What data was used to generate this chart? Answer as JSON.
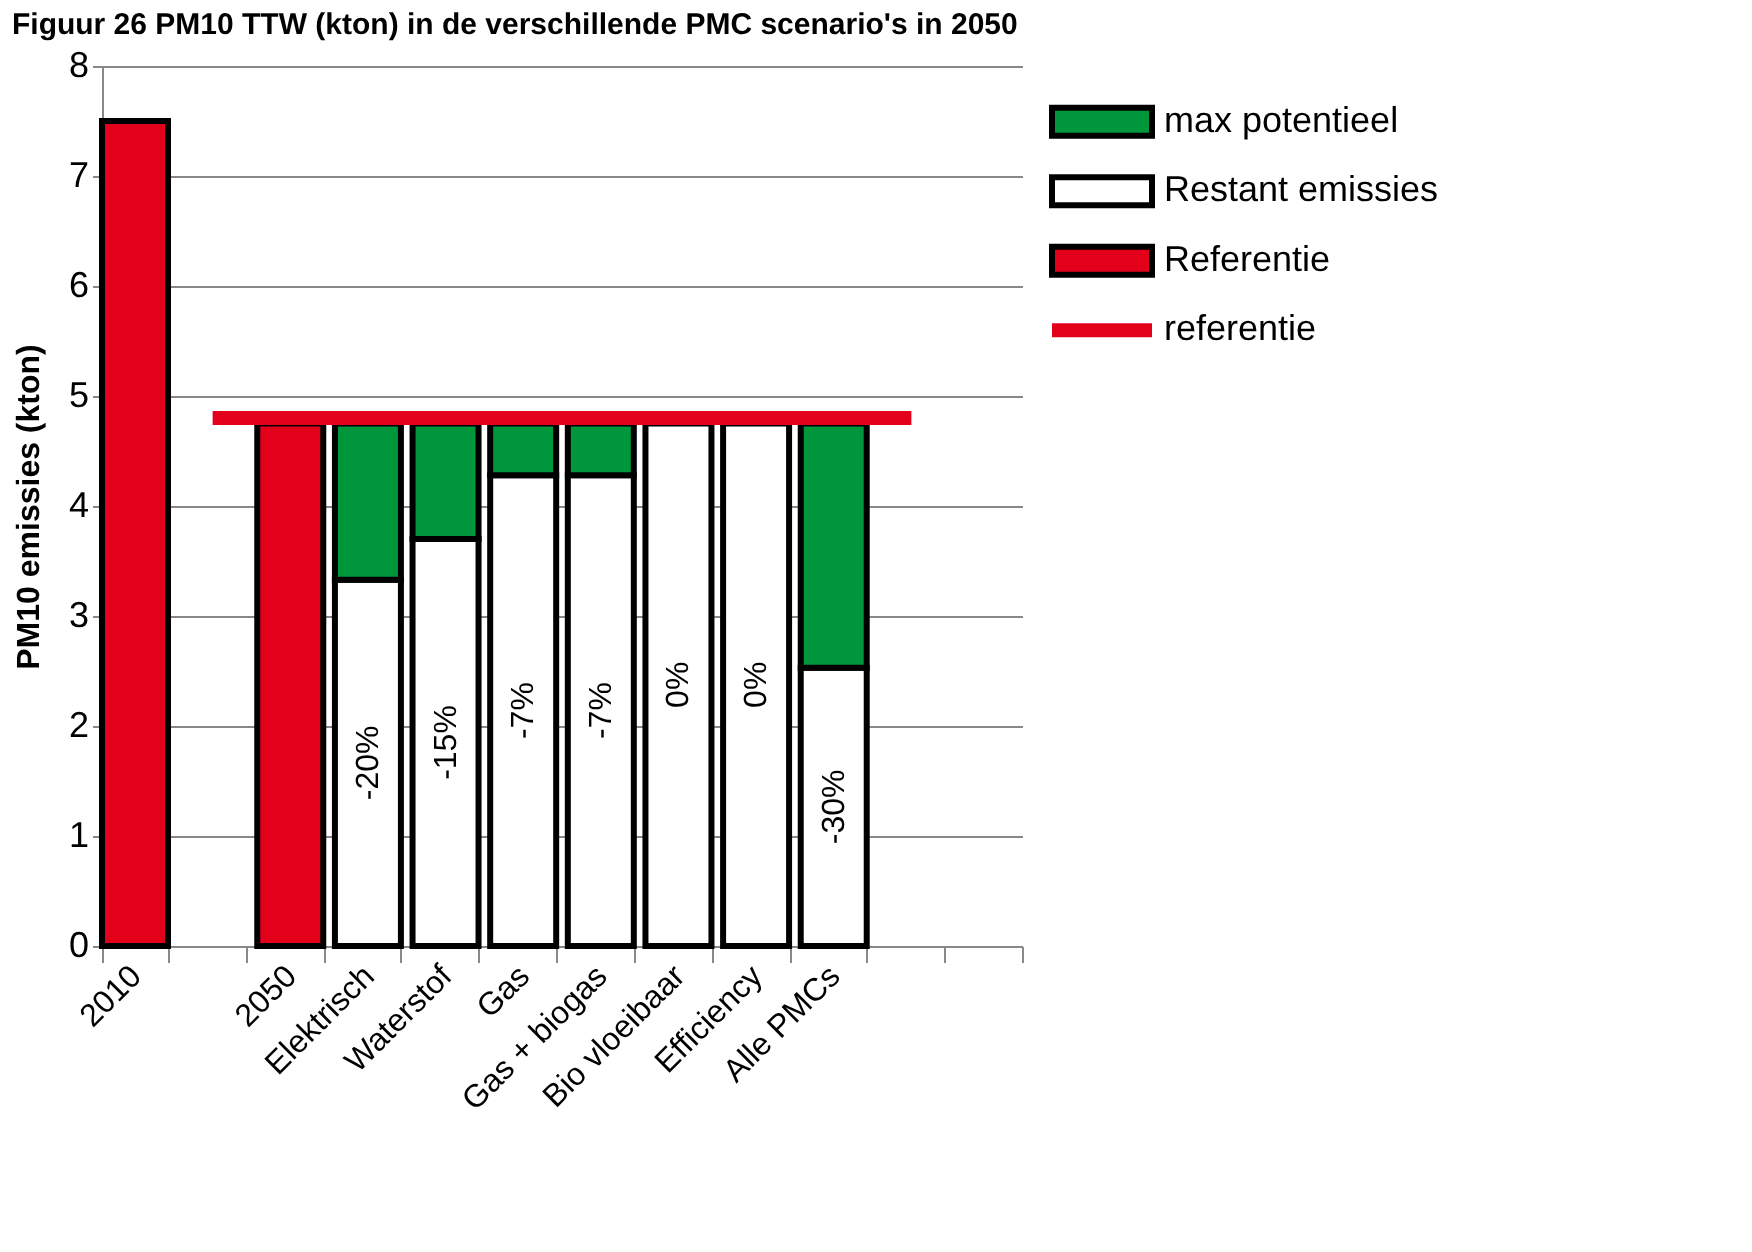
{
  "chart_data": {
    "type": "bar",
    "title": "Figuur 26     PM10 TTW (kton) in de verschillende PMC scenario's in 2050",
    "ylabel": "PM10 emissies (kton)",
    "categories": [
      "2010",
      null,
      "2050",
      "Elektrisch",
      "Waterstof",
      "Gas",
      "Gas + biogas",
      "Bio vloeibaar",
      "Efficiency",
      "Alle PMCs",
      null,
      null
    ],
    "stacked": true,
    "ylim": [
      0,
      8
    ],
    "yticks": [
      0,
      1,
      2,
      3,
      4,
      5,
      6,
      7,
      8
    ],
    "grid": "y",
    "legend": "right",
    "series": [
      {
        "name": "Referentie",
        "color": "#e2001a",
        "values": [
          7.5,
          null,
          4.75,
          null,
          null,
          null,
          null,
          null,
          null,
          null,
          null,
          null
        ]
      },
      {
        "name": "Restant emissies",
        "color": "#ffffff",
        "values": [
          null,
          null,
          null,
          3.33,
          3.7,
          4.28,
          4.28,
          4.75,
          4.75,
          2.53,
          null,
          null
        ]
      },
      {
        "name": "max potentieel",
        "color": "#00963c",
        "values": [
          null,
          null,
          null,
          1.42,
          1.05,
          0.47,
          0.47,
          null,
          null,
          2.22,
          null,
          null
        ]
      },
      {
        "name": "referentie",
        "type": "line",
        "color": "#e2001a",
        "values": [
          null,
          4.8,
          4.8,
          4.8,
          4.8,
          4.8,
          4.8,
          4.8,
          4.8,
          4.8,
          4.8,
          null
        ]
      }
    ],
    "annotations": [
      "-20%",
      "-15%",
      "-7%",
      "-7%",
      "0%",
      "0%",
      "-30%"
    ]
  }
}
